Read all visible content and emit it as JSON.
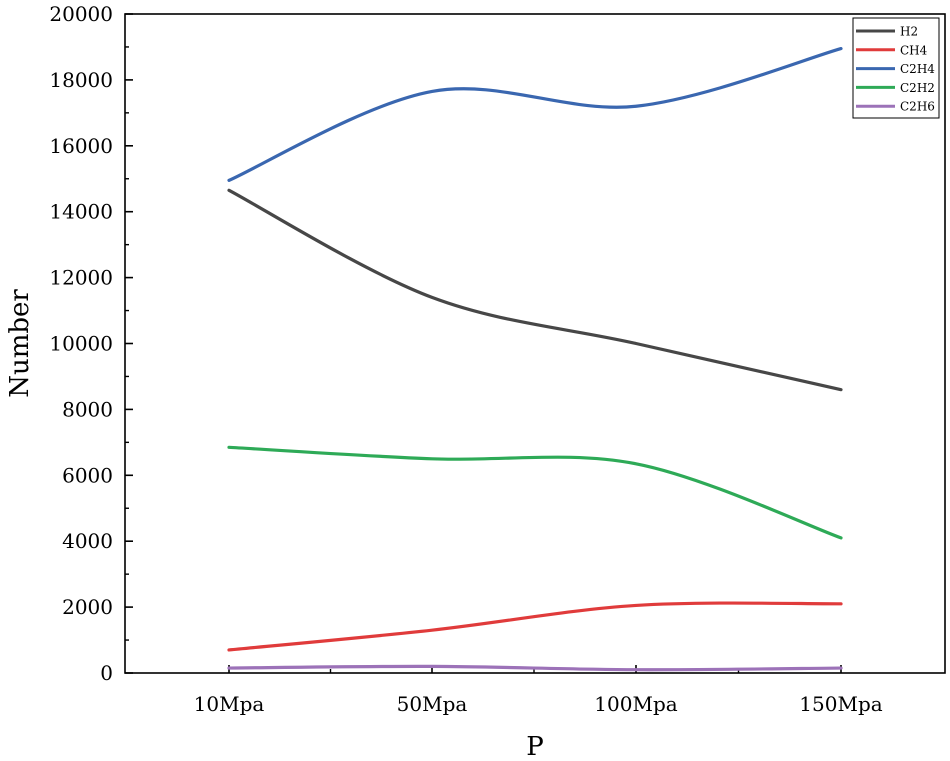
{
  "chart_data": {
    "type": "line",
    "xlabel": "P",
    "ylabel": "Number",
    "categories": [
      "10Mpa",
      "50Mpa",
      "100Mpa",
      "150Mpa"
    ],
    "ylim": [
      0,
      20000
    ],
    "yticks": [
      "0",
      "2000",
      "4000",
      "6000",
      "8000",
      "10000",
      "12000",
      "14000",
      "16000",
      "18000",
      "20000"
    ],
    "legend_position": "top-right",
    "series": [
      {
        "name": "H2",
        "color": "#474747",
        "values": [
          14650,
          11400,
          10000,
          8600
        ]
      },
      {
        "name": "CH4",
        "color": "#e03b3b",
        "values": [
          700,
          1300,
          2050,
          2100
        ]
      },
      {
        "name": "C2H4",
        "color": "#3a67b0",
        "values": [
          14950,
          17650,
          17200,
          18950
        ]
      },
      {
        "name": "C2H2",
        "color": "#2eaa57",
        "values": [
          6850,
          6500,
          6350,
          4100
        ]
      },
      {
        "name": "C2H6",
        "color": "#9c72b8",
        "values": [
          150,
          200,
          100,
          150
        ]
      }
    ]
  }
}
